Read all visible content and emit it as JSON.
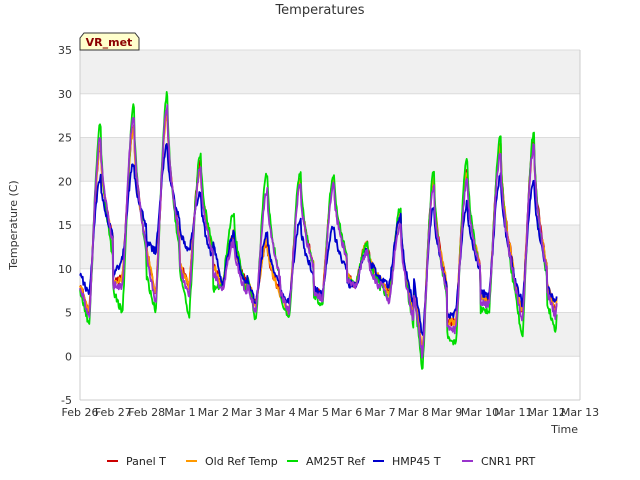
{
  "chart_data": {
    "type": "line",
    "title": "Temperatures",
    "xlabel": "Time",
    "ylabel": "Temperature (C)",
    "badge": "VR_met",
    "ylim": [
      -5,
      35
    ],
    "yticks": [
      -5,
      0,
      5,
      10,
      15,
      20,
      25,
      30,
      35
    ],
    "xlim": [
      0,
      15
    ],
    "xtick_labels": [
      "Feb 26",
      "Feb 27",
      "Feb 28",
      "Mar 1",
      "Mar 2",
      "Mar 3",
      "Mar 4",
      "Mar 5",
      "Mar 6",
      "Mar 7",
      "Mar 8",
      "Mar 9",
      "Mar 10",
      "Mar 11",
      "Mar 12",
      "Mar 13"
    ],
    "colors": {
      "band": "#f0f0f0",
      "grid": "#dcdcdc",
      "axis": "#cccccc",
      "badge_fill": "#ffffcc",
      "badge_border": "#333333"
    },
    "series": [
      {
        "name": "Panel T",
        "color": "#cc0000",
        "daily": [
          [
            5,
            24
          ],
          [
            9,
            26.5
          ],
          [
            7,
            28
          ],
          [
            8,
            22
          ],
          [
            8,
            14
          ],
          [
            6,
            13
          ],
          [
            5,
            20
          ],
          [
            7,
            20
          ],
          [
            8,
            13
          ],
          [
            7,
            16
          ],
          [
            0.5,
            20
          ],
          [
            4,
            21
          ],
          [
            6,
            24
          ],
          [
            5,
            24.5
          ],
          [
            5,
            23
          ],
          [
            6,
            6
          ]
        ]
      },
      {
        "name": "Old Ref Temp",
        "color": "#ff9900",
        "daily": [
          [
            5,
            24
          ],
          [
            9,
            26
          ],
          [
            7,
            27.5
          ],
          [
            8,
            21.5
          ],
          [
            8,
            14
          ],
          [
            6,
            13
          ],
          [
            5,
            20
          ],
          [
            7,
            20
          ],
          [
            8,
            13
          ],
          [
            7,
            16
          ],
          [
            0.5,
            20
          ],
          [
            4,
            21
          ],
          [
            6,
            24
          ],
          [
            5,
            24
          ],
          [
            5,
            23
          ],
          [
            6,
            6
          ]
        ]
      },
      {
        "name": "AM25T Ref",
        "color": "#00dd00",
        "daily": [
          [
            3.5,
            26.5
          ],
          [
            5,
            28.5
          ],
          [
            5,
            30
          ],
          [
            4.5,
            23
          ],
          [
            8,
            16.5
          ],
          [
            4,
            21
          ],
          [
            4,
            21
          ],
          [
            6,
            21
          ],
          [
            8,
            13
          ],
          [
            6,
            17
          ],
          [
            -1.5,
            21
          ],
          [
            1.5,
            22.5
          ],
          [
            5,
            25
          ],
          [
            2,
            25.5
          ],
          [
            3,
            24.5
          ],
          [
            6,
            6
          ]
        ]
      },
      {
        "name": "HMP45 T",
        "color": "#0000cc",
        "daily": [
          [
            7,
            20.5
          ],
          [
            11,
            22
          ],
          [
            12,
            24
          ],
          [
            12,
            18.5
          ],
          [
            8,
            14
          ],
          [
            6,
            14
          ],
          [
            6,
            15.5
          ],
          [
            7,
            15
          ],
          [
            8,
            12
          ],
          [
            8,
            16
          ],
          [
            2,
            17
          ],
          [
            5,
            17.5
          ],
          [
            7,
            20.5
          ],
          [
            6,
            20
          ],
          [
            6,
            18.5
          ],
          [
            8,
            8
          ]
        ]
      },
      {
        "name": "CNR1 PRT",
        "color": "#9933cc",
        "daily": [
          [
            4.5,
            25
          ],
          [
            8,
            27.5
          ],
          [
            6,
            28.5
          ],
          [
            7,
            21.5
          ],
          [
            7.5,
            13
          ],
          [
            5,
            19
          ],
          [
            5,
            19.5
          ],
          [
            6.5,
            19.5
          ],
          [
            8,
            12
          ],
          [
            6,
            15
          ],
          [
            0,
            19.5
          ],
          [
            3,
            20
          ],
          [
            6,
            23
          ],
          [
            4,
            24
          ],
          [
            4.5,
            22.5
          ],
          [
            6.5,
            6.5
          ]
        ]
      }
    ]
  }
}
